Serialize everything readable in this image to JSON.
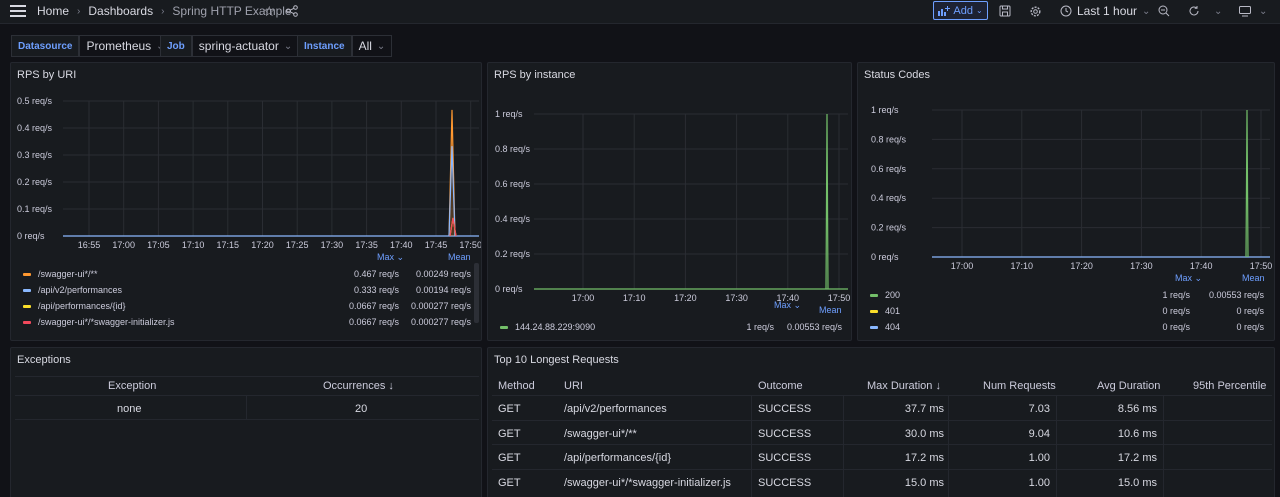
{
  "topbar": {
    "breadcrumb": [
      "Home",
      "Dashboards",
      "Spring HTTP Example"
    ],
    "add_label": "Add",
    "time_range": "Last 1 hour"
  },
  "variables": [
    {
      "label": "Datasource",
      "value": "Prometheus"
    },
    {
      "label": "Job",
      "value": "spring-actuator"
    },
    {
      "label": "Instance",
      "value": "All"
    }
  ],
  "colors": {
    "green": "#73bf69",
    "orange": "#ff9830",
    "blue": "#8ab8ff",
    "yellow": "#fade2a",
    "red": "#f2495c",
    "accent": "#6e9fff"
  },
  "panels": {
    "rps_uri": {
      "title": "RPS by URI",
      "yticks": [
        "0.5 req/s",
        "0.4 req/s",
        "0.3 req/s",
        "0.2 req/s",
        "0.1 req/s",
        "0 req/s"
      ],
      "xticks": [
        "16:55",
        "17:00",
        "17:05",
        "17:10",
        "17:15",
        "17:20",
        "17:25",
        "17:30",
        "17:35",
        "17:40",
        "17:45",
        "17:50"
      ],
      "legend_headers": [
        "Max",
        "Mean"
      ],
      "legend": [
        {
          "name": "/swagger-ui*/**",
          "max": "0.467 req/s",
          "mean": "0.00249 req/s",
          "color": "#ff9830"
        },
        {
          "name": "/api/v2/performances",
          "max": "0.333 req/s",
          "mean": "0.00194 req/s",
          "color": "#8ab8ff"
        },
        {
          "name": "/api/performances/{id}",
          "max": "0.0667 req/s",
          "mean": "0.000277 req/s",
          "color": "#fade2a"
        },
        {
          "name": "/swagger-ui*/*swagger-initializer.js",
          "max": "0.0667 req/s",
          "mean": "0.000277 req/s",
          "color": "#f2495c"
        }
      ]
    },
    "rps_instance": {
      "title": "RPS by instance",
      "yticks": [
        "1 req/s",
        "0.8 req/s",
        "0.6 req/s",
        "0.4 req/s",
        "0.2 req/s",
        "0 req/s"
      ],
      "xticks": [
        "17:00",
        "17:10",
        "17:20",
        "17:30",
        "17:40",
        "17:50"
      ],
      "legend_headers": [
        "Max",
        "Mean"
      ],
      "legend": [
        {
          "name": "144.24.88.229:9090",
          "max": "1 req/s",
          "mean": "0.00553 req/s",
          "color": "#73bf69"
        }
      ]
    },
    "status_codes": {
      "title": "Status Codes",
      "yticks": [
        "1 req/s",
        "0.8 req/s",
        "0.6 req/s",
        "0.4 req/s",
        "0.2 req/s",
        "0 req/s"
      ],
      "xticks": [
        "17:00",
        "17:10",
        "17:20",
        "17:30",
        "17:40",
        "17:50"
      ],
      "legend_headers": [
        "Max",
        "Mean"
      ],
      "legend": [
        {
          "name": "200",
          "max": "1 req/s",
          "mean": "0.00553 req/s",
          "color": "#73bf69"
        },
        {
          "name": "401",
          "max": "0 req/s",
          "mean": "0 req/s",
          "color": "#fade2a"
        },
        {
          "name": "404",
          "max": "0 req/s",
          "mean": "0 req/s",
          "color": "#8ab8ff"
        }
      ]
    },
    "exceptions": {
      "title": "Exceptions",
      "headers": [
        "Exception",
        "Occurrences"
      ],
      "rows": [
        [
          "none",
          "20"
        ]
      ]
    },
    "longest": {
      "title": "Top 10 Longest Requests",
      "headers": [
        "Method",
        "URI",
        "Outcome",
        "Max Duration",
        "Num Requests",
        "Avg Duration",
        "95th Percentile"
      ],
      "rows": [
        [
          "GET",
          "/api/v2/performances",
          "SUCCESS",
          "37.7 ms",
          "7.03",
          "8.56 ms",
          ""
        ],
        [
          "GET",
          "/swagger-ui*/**",
          "SUCCESS",
          "30.0 ms",
          "9.04",
          "10.6 ms",
          ""
        ],
        [
          "GET",
          "/api/performances/{id}",
          "SUCCESS",
          "17.2 ms",
          "1.00",
          "17.2 ms",
          ""
        ],
        [
          "GET",
          "/swagger-ui*/*swagger-initializer.js",
          "SUCCESS",
          "15.0 ms",
          "1.00",
          "15.0 ms",
          ""
        ]
      ]
    }
  }
}
